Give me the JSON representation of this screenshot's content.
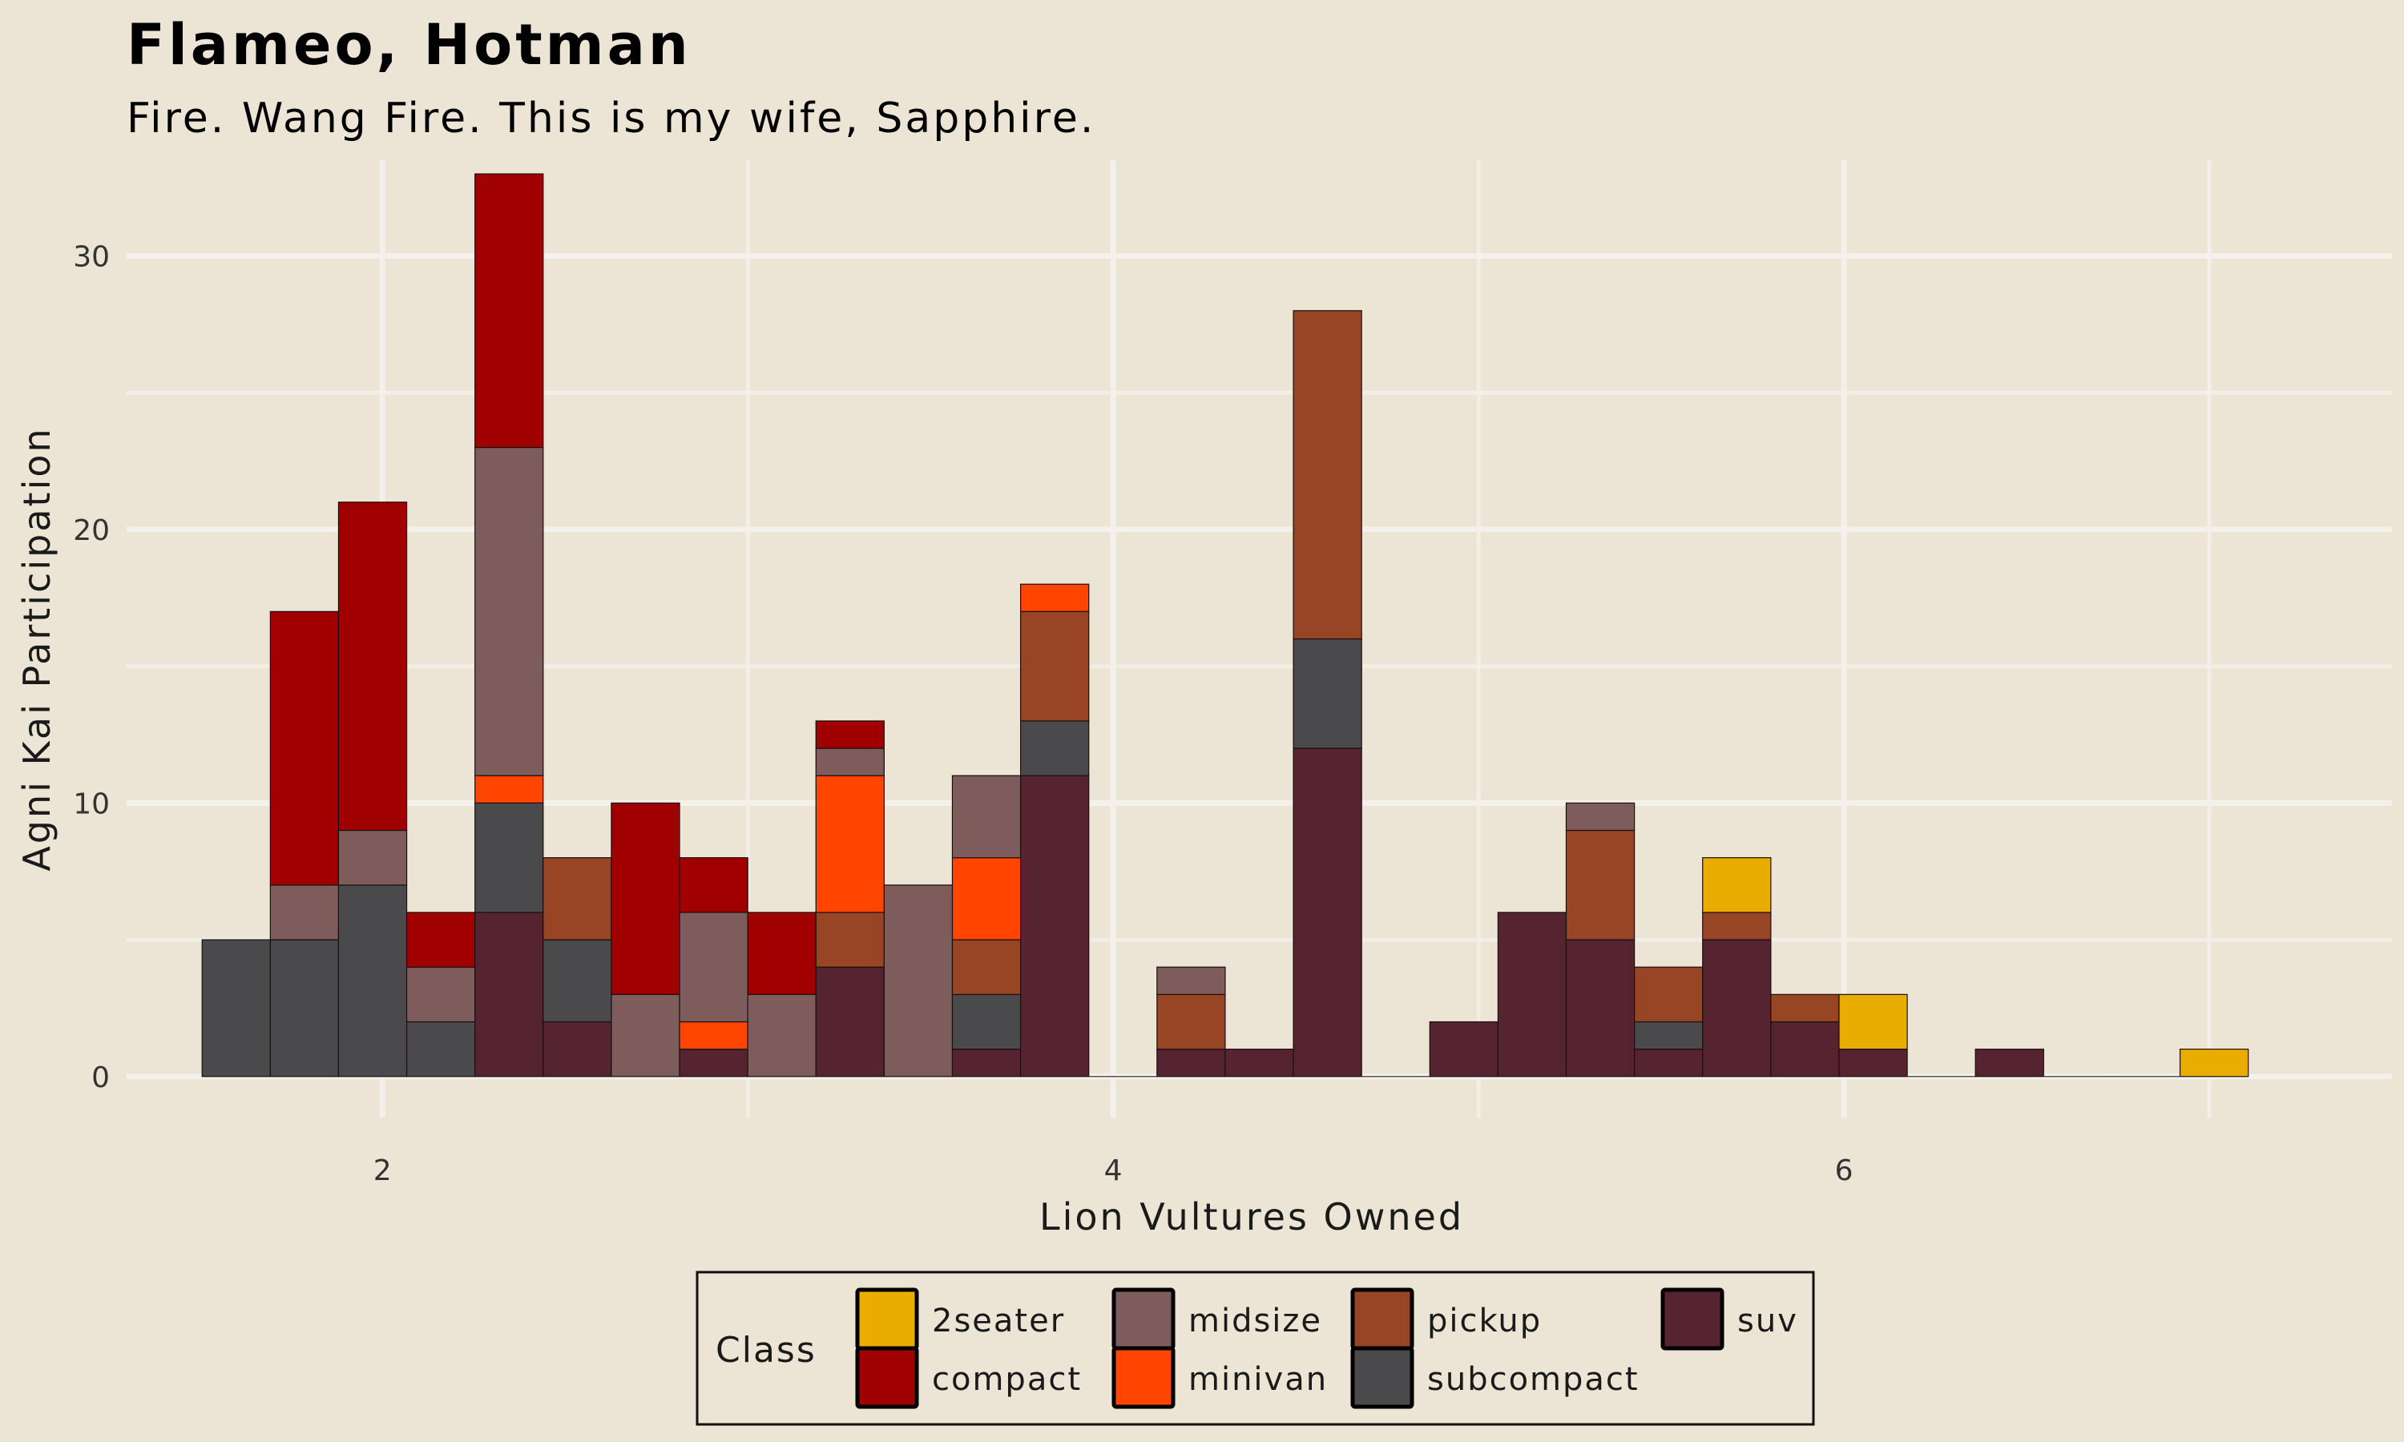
{
  "chart_data": {
    "type": "bar",
    "title": "Flameo, Hotman",
    "subtitle": "Fire. Wang Fire. This is my wife, Sapphire.",
    "xlabel": "Lion Vultures Owned",
    "ylabel": "Agni Kai Participation",
    "xlim": [
      1.3,
      7.5
    ],
    "ylim": [
      -1.5,
      33.5
    ],
    "x_ticks": [
      2,
      4,
      6
    ],
    "y_ticks": [
      0,
      10,
      20,
      30
    ],
    "grid": true,
    "legend_position": "bottom",
    "legend_title": "Class",
    "bin_width": 0.1867,
    "bins": [
      1.6,
      1.7867,
      1.9733,
      2.16,
      2.3467,
      2.5333,
      2.72,
      2.9067,
      3.0933,
      3.28,
      3.4667,
      3.6533,
      3.84,
      4.0267,
      4.2133,
      4.4,
      4.5867,
      4.7733,
      4.96,
      5.1467,
      5.3333,
      5.52,
      5.7067,
      5.8933,
      6.08,
      6.2667,
      6.4533,
      6.64,
      6.8267,
      7.0133
    ],
    "stack_order": [
      "suv",
      "subcompact",
      "pickup",
      "minivan",
      "midsize",
      "compact",
      "2seater"
    ],
    "series": [
      {
        "name": "2seater",
        "color": "#e8ad00",
        "values": [
          0,
          0,
          0,
          0,
          0,
          0,
          0,
          0,
          0,
          0,
          0,
          0,
          0,
          0,
          0,
          0,
          0,
          0,
          0,
          0,
          0,
          0,
          2,
          0,
          2,
          0,
          0,
          0,
          0,
          1
        ]
      },
      {
        "name": "compact",
        "color": "#a00000",
        "values": [
          0,
          10,
          12,
          2,
          10,
          0,
          7,
          2,
          3,
          1,
          0,
          0,
          0,
          0,
          0,
          0,
          0,
          0,
          0,
          0,
          0,
          0,
          0,
          0,
          0,
          0,
          0,
          0,
          0,
          0
        ]
      },
      {
        "name": "midsize",
        "color": "#7e5c5b",
        "values": [
          0,
          2,
          2,
          2,
          12,
          0,
          3,
          4,
          3,
          1,
          7,
          3,
          0,
          0,
          1,
          0,
          0,
          0,
          0,
          0,
          1,
          0,
          0,
          0,
          0,
          0,
          0,
          0,
          0,
          0
        ]
      },
      {
        "name": "minivan",
        "color": "#ff4500",
        "values": [
          0,
          0,
          0,
          0,
          1,
          0,
          0,
          1,
          0,
          5,
          0,
          3,
          1,
          0,
          0,
          0,
          0,
          0,
          0,
          0,
          0,
          0,
          0,
          0,
          0,
          0,
          0,
          0,
          0,
          0
        ]
      },
      {
        "name": "pickup",
        "color": "#974524",
        "values": [
          0,
          0,
          0,
          0,
          0,
          3,
          0,
          0,
          0,
          2,
          0,
          2,
          4,
          0,
          2,
          0,
          12,
          0,
          0,
          0,
          4,
          2,
          1,
          1,
          0,
          0,
          0,
          0,
          0,
          0
        ]
      },
      {
        "name": "subcompact",
        "color": "#4a4a4c",
        "values": [
          5,
          5,
          7,
          2,
          4,
          3,
          0,
          0,
          0,
          0,
          0,
          2,
          2,
          0,
          0,
          0,
          4,
          0,
          0,
          0,
          0,
          1,
          0,
          0,
          0,
          0,
          0,
          0,
          0,
          0
        ]
      },
      {
        "name": "suv",
        "color": "#562430",
        "values": [
          0,
          0,
          0,
          0,
          6,
          2,
          0,
          1,
          0,
          4,
          0,
          1,
          11,
          0,
          1,
          1,
          12,
          0,
          2,
          6,
          5,
          1,
          5,
          2,
          1,
          0,
          1,
          0,
          0,
          0
        ]
      }
    ],
    "legend_rows": [
      [
        "2seater",
        "midsize",
        "pickup",
        "suv"
      ],
      [
        "compact",
        "minivan",
        "subcompact"
      ]
    ]
  }
}
